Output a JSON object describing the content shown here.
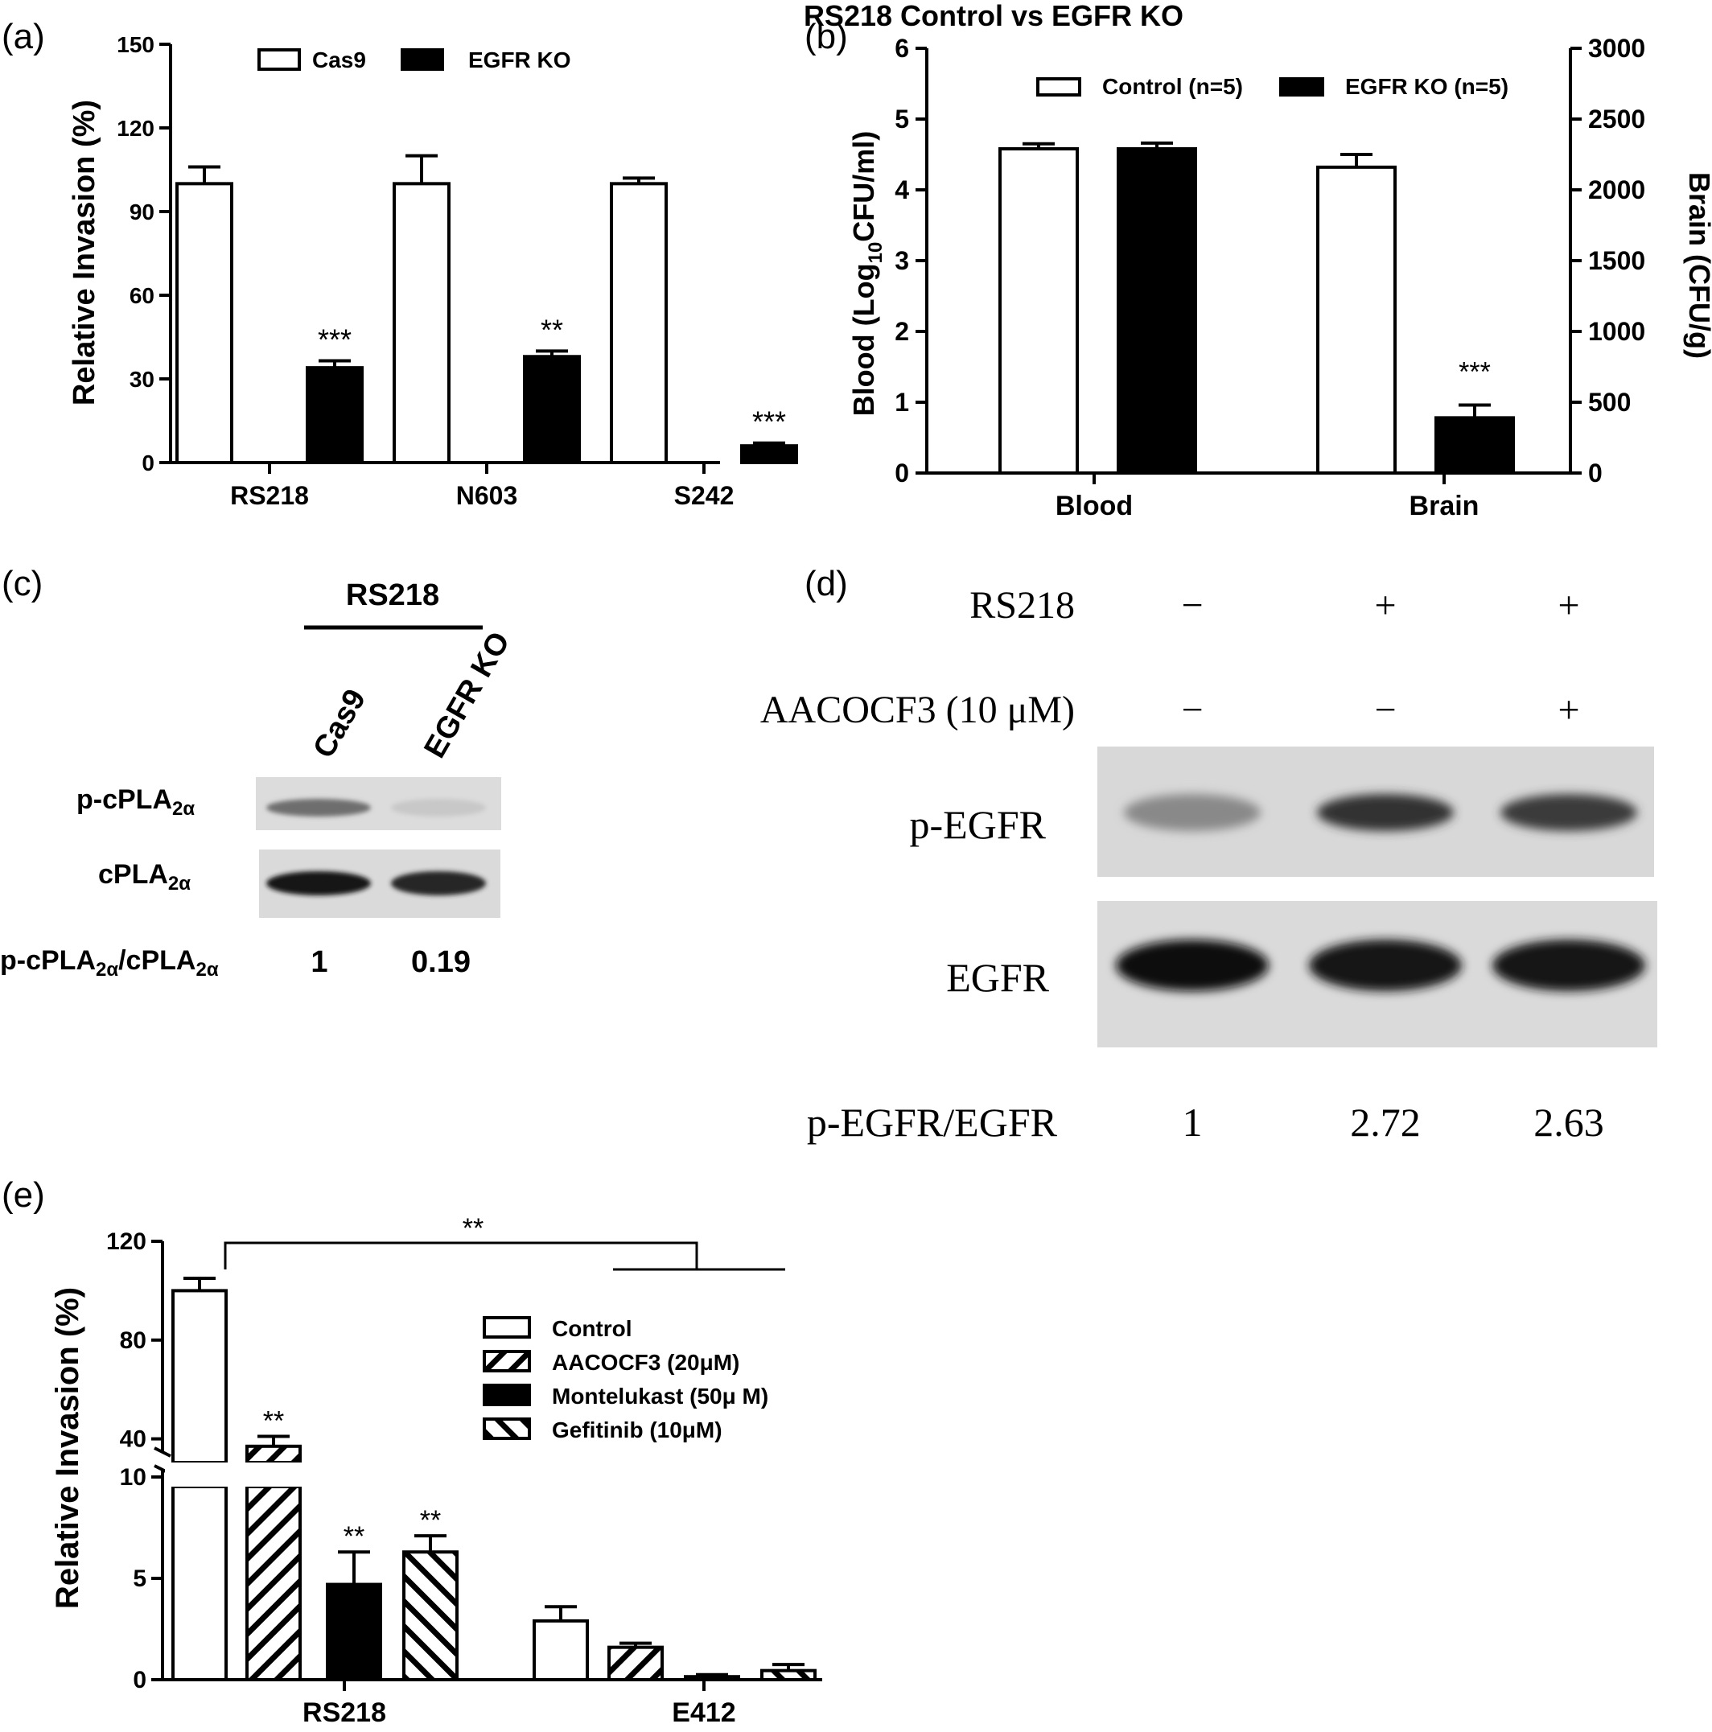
{
  "panels": {
    "a": {
      "label": "(a)"
    },
    "b": {
      "label": "(b)"
    },
    "c": {
      "label": "(c)"
    },
    "d": {
      "label": "(d)"
    },
    "e": {
      "label": "(e)"
    }
  },
  "chart_data": [
    {
      "panel": "a",
      "type": "bar",
      "title": "",
      "ylabel": "Relative Invasion (%)",
      "xlabel": "",
      "ylim": [
        0,
        150
      ],
      "yticks": [
        0,
        30,
        60,
        90,
        120,
        150
      ],
      "categories": [
        "RS218",
        "N603",
        "S242"
      ],
      "legend_position": "top",
      "series": [
        {
          "name": "Cas9",
          "values": [
            100,
            100,
            100
          ],
          "errors": [
            6,
            10,
            2
          ],
          "fill": "#ffffff"
        },
        {
          "name": "EGFR KO",
          "values": [
            34,
            38,
            6
          ],
          "errors": [
            2.5,
            2,
            1
          ],
          "fill": "#000000"
        }
      ],
      "annotations": [
        {
          "category": 0,
          "series": 1,
          "text": "***"
        },
        {
          "category": 1,
          "series": 1,
          "text": "**"
        },
        {
          "category": 2,
          "series": 1,
          "text": "***"
        }
      ]
    },
    {
      "panel": "b",
      "type": "bar",
      "title": "RS218 Control vs EGFR KO",
      "ylabel_parts": [
        "Blood (Log",
        "10",
        "CFU/ml)"
      ],
      "y2label": "Brain (CFU/g)",
      "xlabel": "",
      "ylim": [
        0,
        6
      ],
      "yticks": [
        0,
        1,
        2,
        3,
        4,
        5,
        6
      ],
      "y2lim": [
        0,
        3000
      ],
      "y2ticks": [
        0,
        500,
        1000,
        1500,
        2000,
        2500,
        3000
      ],
      "categories": [
        "Blood",
        "Brain"
      ],
      "legend_position": "top",
      "series": [
        {
          "name": "Control (n=5)",
          "values": [
            4.58,
            2160
          ],
          "errors": [
            0.07,
            90
          ],
          "axis": [
            "left",
            "right"
          ],
          "fill": "#ffffff"
        },
        {
          "name": "EGFR KO (n=5)",
          "values": [
            4.58,
            390
          ],
          "errors": [
            0.08,
            90
          ],
          "axis": [
            "left",
            "right"
          ],
          "fill": "#000000"
        }
      ],
      "annotations": [
        {
          "category": 1,
          "series": 1,
          "text": "***"
        }
      ]
    },
    {
      "panel": "e",
      "type": "bar",
      "title": "",
      "ylabel": "Relative Invasion (%)",
      "xlabel": "",
      "broken_axis": true,
      "ylim_lower": [
        0,
        10
      ],
      "yticks_lower": [
        0,
        5,
        10
      ],
      "ylim_upper": [
        20,
        120
      ],
      "yticks_upper": [
        40,
        80,
        120
      ],
      "categories": [
        "RS218",
        "E412"
      ],
      "legend_position": "center",
      "series": [
        {
          "name": "Control",
          "values": [
            100,
            2.9
          ],
          "errors": [
            5,
            0.7
          ],
          "pattern": "open"
        },
        {
          "name": "AACOCF3 (20μM)",
          "values": [
            37,
            1.6
          ],
          "errors": [
            4,
            0.2
          ],
          "pattern": "hatch-right"
        },
        {
          "name": "Montelukast (50μ M)",
          "values": [
            4.7,
            0.15
          ],
          "errors": [
            1.6,
            0.1
          ],
          "pattern": "solid"
        },
        {
          "name": "Gefitinib (10μM)",
          "values": [
            6.3,
            0.45
          ],
          "errors": [
            0.8,
            0.3
          ],
          "pattern": "hatch-left"
        }
      ],
      "annotations": [
        {
          "category": 0,
          "series": 1,
          "text": "**"
        },
        {
          "category": 0,
          "series": 2,
          "text": "**"
        },
        {
          "category": 0,
          "series": 3,
          "text": "**"
        }
      ],
      "bracket": {
        "text": "**"
      }
    }
  ],
  "blot_c": {
    "group": "RS218",
    "lanes": [
      "Cas9",
      "EGFR KO"
    ],
    "row_labels": [
      {
        "main": "p-cPLA",
        "sub": "2α"
      },
      {
        "main": "cPLA",
        "sub": "2α"
      }
    ],
    "ratio_label": {
      "p1": "p-cPLA",
      "s1": "2α",
      "p2": "/cPLA",
      "s2": "2α"
    },
    "ratios": [
      "1",
      "0.19"
    ],
    "band_intensity": [
      [
        0.55,
        0.08
      ],
      [
        1.0,
        0.92
      ]
    ]
  },
  "blot_d": {
    "treatments": [
      {
        "label": "RS218",
        "values": [
          "−",
          "+",
          "+"
        ]
      },
      {
        "label": "AACOCF3 (10 μM)",
        "values": [
          "−",
          "−",
          "+"
        ]
      }
    ],
    "row_labels": [
      "p-EGFR",
      "EGFR"
    ],
    "ratio_label": "p-EGFR/EGFR",
    "ratios": [
      "1",
      "2.72",
      "2.63"
    ],
    "band_intensity": [
      [
        0.35,
        0.8,
        0.75
      ],
      [
        1.0,
        0.95,
        0.95
      ]
    ]
  }
}
